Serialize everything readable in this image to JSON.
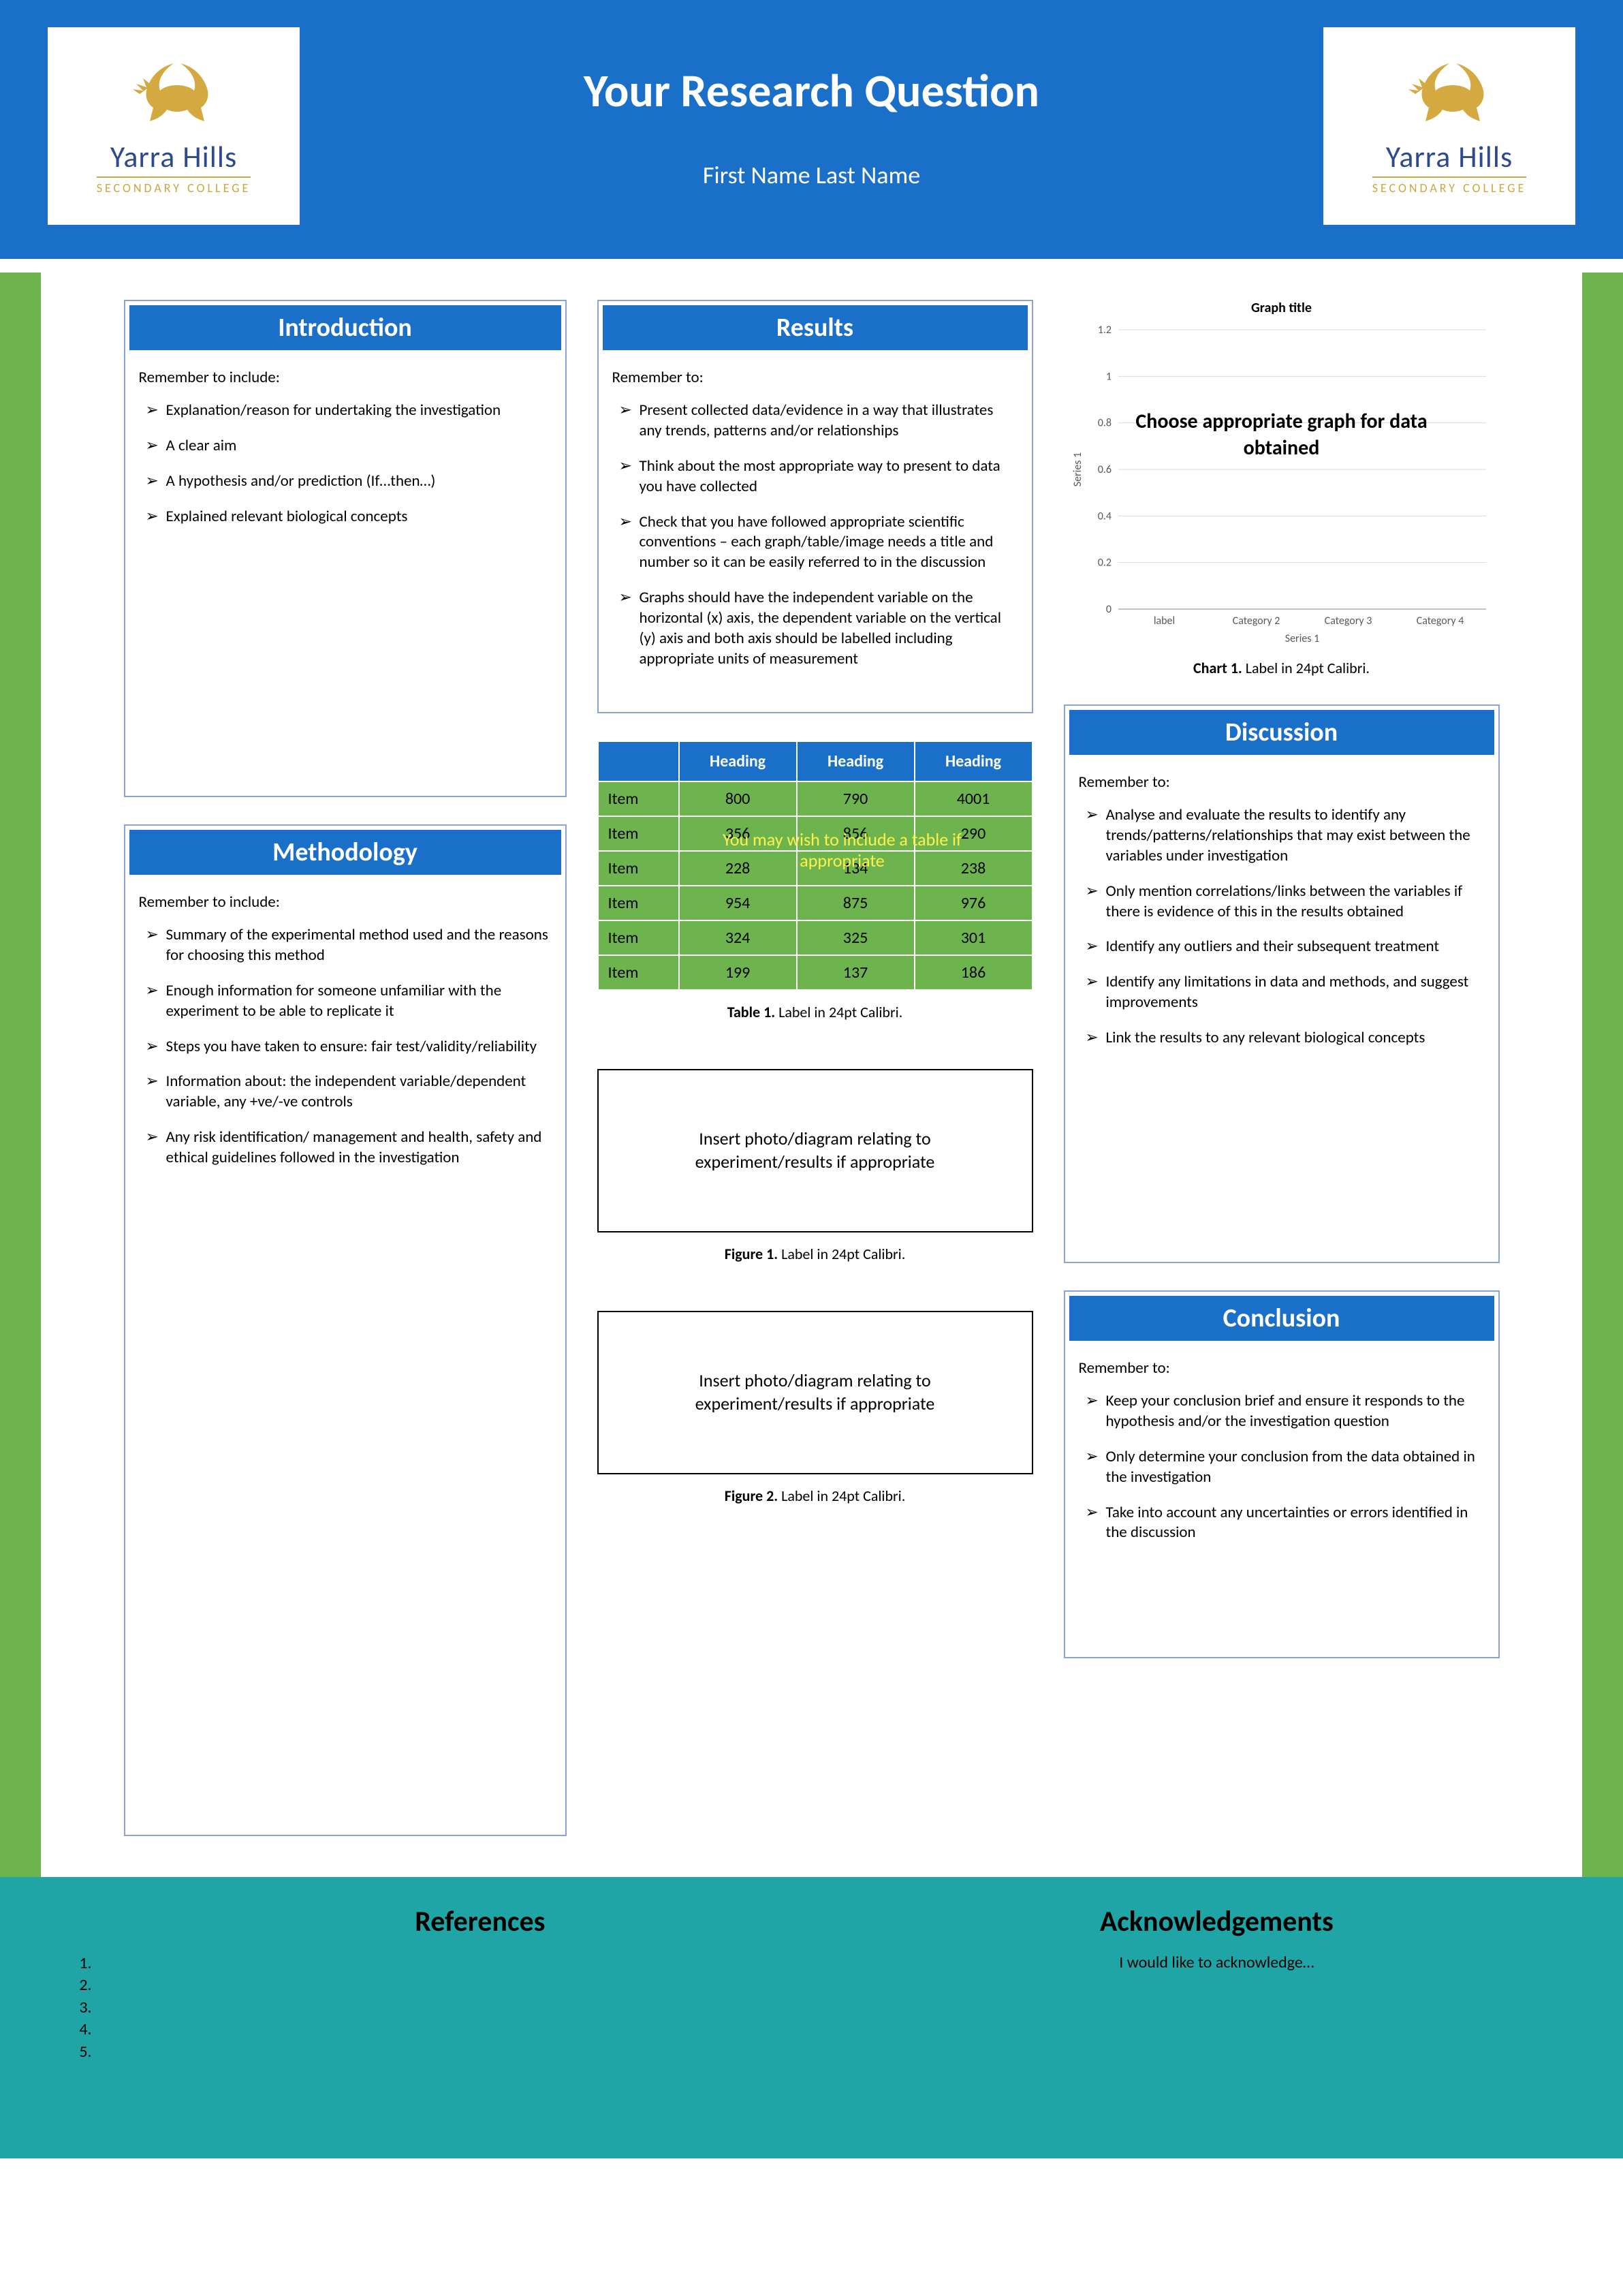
{
  "colors": {
    "header_bg": "#1a6fc9",
    "body_accent": "#6db44f",
    "footer_bg": "#1fa5a5",
    "section_border": "#8aa4d8",
    "table_header": "#1a6fc9",
    "table_cell": "#6db44f",
    "logo_gold": "#d4a940",
    "logo_navy": "#2e4a8e"
  },
  "header": {
    "title": "Your Research Question",
    "author": "First Name Last Name"
  },
  "logo": {
    "name": "Yarra Hills",
    "subtitle": "SECONDARY COLLEGE"
  },
  "introduction": {
    "title": "Introduction",
    "intro": "Remember to include:",
    "bullets": [
      "Explanation/reason for undertaking the investigation",
      "A clear aim",
      "A hypothesis and/or prediction (If…then…)",
      "Explained relevant biological concepts"
    ]
  },
  "methodology": {
    "title": "Methodology",
    "intro": "Remember to include:",
    "bullets": [
      "Summary of the experimental method used and the reasons for choosing this method",
      "Enough information for someone unfamiliar with the experiment to be able to replicate it",
      "Steps you have taken to ensure: fair test/validity/reliability",
      "Information about: the independent variable/dependent variable, any +ve/-ve controls",
      "Any risk identification/ management and health, safety and ethical guidelines followed in the investigation"
    ]
  },
  "results": {
    "title": "Results",
    "intro": "Remember to:",
    "bullets": [
      "Present collected data/evidence in a way that illustrates any trends, patterns and/or relationships",
      "Think about the most appropriate way to present to data you have collected",
      "Check that you have followed appropriate scientific conventions – each graph/table/image needs a title and number so it can be easily referred to in the discussion",
      "Graphs should have the independent variable on the horizontal (x) axis, the dependent variable on the vertical (y) axis and both axis should be labelled including appropriate units of measurement"
    ]
  },
  "chart": {
    "title": "Graph title",
    "overlay": "Choose appropriate graph for data obtained",
    "type": "bar",
    "ylim": [
      0,
      1.2
    ],
    "ytick_step": 0.2,
    "yticks": [
      "0",
      "0.2",
      "0.4",
      "0.6",
      "0.8",
      "1",
      "1.2"
    ],
    "categories": [
      "label",
      "Category 2",
      "Category 3",
      "Category 4"
    ],
    "series_label": "Series 1",
    "y_axis_label": "Series 1",
    "grid_color": "#d9d9d9",
    "axis_color": "#888888",
    "label_fontsize": 16,
    "title_fontsize": 20,
    "caption_bold": "Chart 1.",
    "caption_rest": " Label in 24pt Calibri."
  },
  "table": {
    "headers": [
      "",
      "Heading",
      "Heading",
      "Heading"
    ],
    "rows": [
      [
        "Item",
        "800",
        "790",
        "4001"
      ],
      [
        "Item",
        "356",
        "856",
        "290"
      ],
      [
        "Item",
        "228",
        "134",
        "238"
      ],
      [
        "Item",
        "954",
        "875",
        "976"
      ],
      [
        "Item",
        "324",
        "325",
        "301"
      ],
      [
        "Item",
        "199",
        "137",
        "186"
      ]
    ],
    "overlay": "You may wish to include a table if appropriate",
    "caption_bold": "Table 1.",
    "caption_rest": " Label in 24pt Calibri."
  },
  "figures": {
    "placeholder": "Insert photo/diagram relating to experiment/results if appropriate",
    "fig1_bold": "Figure 1.",
    "fig1_rest": " Label in 24pt Calibri.",
    "fig2_bold": "Figure 2.",
    "fig2_rest": " Label in 24pt Calibri."
  },
  "discussion": {
    "title": "Discussion",
    "intro": "Remember to:",
    "bullets": [
      "Analyse and evaluate the results to identify any trends/patterns/relationships that may exist between the variables under investigation",
      "Only mention correlations/links between the variables if there is evidence of this in the results obtained",
      "Identify any outliers and their subsequent treatment",
      "Identify any limitations in data and methods, and suggest improvements",
      "Link the results to any relevant biological concepts"
    ]
  },
  "conclusion": {
    "title": "Conclusion",
    "intro": "Remember to:",
    "bullets": [
      "Keep your conclusion brief and ensure it responds to the hypothesis and/or the investigation question",
      "Only determine your conclusion from the data obtained in the investigation",
      "Take into account any uncertainties or errors identified in the discussion"
    ]
  },
  "footer": {
    "references_title": "References",
    "references": [
      "",
      "",
      "",
      "",
      ""
    ],
    "ack_title": "Acknowledgements",
    "ack_text": "I would like to acknowledge…"
  }
}
